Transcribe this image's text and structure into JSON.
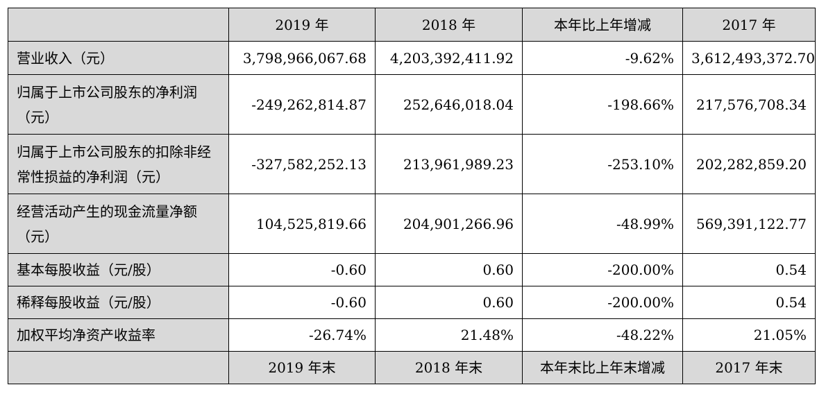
{
  "table": {
    "headers": [
      "",
      "2019 年",
      "2018 年",
      "本年比上年增减",
      "2017 年"
    ],
    "rows": [
      {
        "label": "营业收入（元）",
        "values": [
          "3,798,966,067.68",
          "4,203,392,411.92",
          "-9.62%",
          "3,612,493,372.70"
        ]
      },
      {
        "label": "归属于上市公司股东的净利润（元）",
        "values": [
          "-249,262,814.87",
          "252,646,018.04",
          "-198.66%",
          "217,576,708.34"
        ]
      },
      {
        "label": "归属于上市公司股东的扣除非经常性损益的净利润（元）",
        "values": [
          "-327,582,252.13",
          "213,961,989.23",
          "-253.10%",
          "202,282,859.20"
        ]
      },
      {
        "label": "经营活动产生的现金流量净额（元）",
        "values": [
          "104,525,819.66",
          "204,901,266.96",
          "-48.99%",
          "569,391,122.77"
        ]
      },
      {
        "label": "基本每股收益（元/股）",
        "values": [
          "-0.60",
          "0.60",
          "-200.00%",
          "0.54"
        ]
      },
      {
        "label": "稀释每股收益（元/股）",
        "values": [
          "-0.60",
          "0.60",
          "-200.00%",
          "0.54"
        ]
      },
      {
        "label": "加权平均净资产收益率",
        "values": [
          "-26.74%",
          "21.48%",
          "-48.22%",
          "21.05%"
        ]
      }
    ],
    "footer_headers": [
      "",
      "2019 年末",
      "2018 年末",
      "本年末比上年末增减",
      "2017 年末"
    ]
  }
}
